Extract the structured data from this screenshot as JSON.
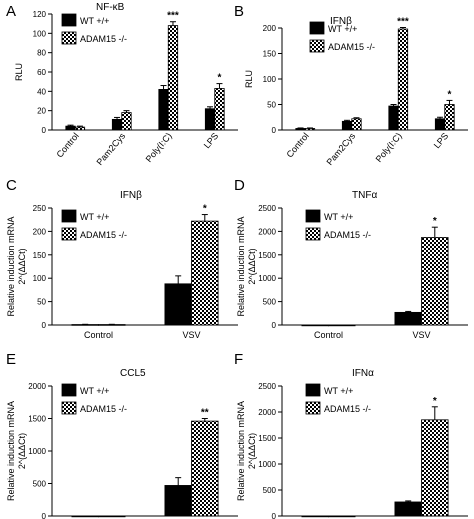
{
  "figure": {
    "legend_series": [
      "WT +/+",
      "ADAM15 -/-"
    ],
    "colors": {
      "wt": "#000000",
      "ko_pattern": "checkered"
    }
  },
  "chart_data": [
    {
      "panel": "A",
      "type": "bar",
      "title": "NF-κB",
      "ylabel": "RLU",
      "xlabel": "",
      "ylim": [
        0,
        120
      ],
      "yticks": [
        0,
        20,
        40,
        60,
        80,
        100,
        120
      ],
      "categories": [
        "Control",
        "Pam2Cys",
        "Poly(I:C)",
        "LPS"
      ],
      "category_label_rotation": -50,
      "series": [
        {
          "name": "WT +/+",
          "values": [
            4,
            11,
            42,
            22
          ],
          "errors": [
            1,
            2,
            4,
            2
          ]
        },
        {
          "name": "ADAM15 -/-",
          "values": [
            3,
            18,
            108,
            43
          ],
          "errors": [
            1,
            2,
            4,
            5
          ]
        }
      ],
      "annotations": [
        {
          "category": "Poly(I:C)",
          "series": "ADAM15 -/-",
          "text": "***"
        },
        {
          "category": "LPS",
          "series": "ADAM15 -/-",
          "text": "*"
        }
      ],
      "legend": "top-left"
    },
    {
      "panel": "B",
      "type": "bar",
      "title": "IFNβ",
      "ylabel": "RLU",
      "xlabel": "",
      "ylim": [
        0,
        200
      ],
      "yticks": [
        0,
        50,
        100,
        150,
        200
      ],
      "categories": [
        "Control",
        "Pam2Cys",
        "Poly(I:C)",
        "LPS"
      ],
      "category_label_rotation": -50,
      "series": [
        {
          "name": "WT +/+",
          "values": [
            3,
            17,
            47,
            22
          ],
          "errors": [
            1,
            2,
            3,
            3
          ]
        },
        {
          "name": "ADAM15 -/-",
          "values": [
            3,
            22,
            198,
            50
          ],
          "errors": [
            1,
            2,
            3,
            8
          ]
        }
      ],
      "annotations": [
        {
          "category": "Poly(I:C)",
          "series": "ADAM15 -/-",
          "text": "***"
        },
        {
          "category": "LPS",
          "series": "ADAM15 -/-",
          "text": "*"
        }
      ],
      "legend": "top-left"
    },
    {
      "panel": "C",
      "type": "bar",
      "title": "IFNβ",
      "ylabel": "Relative induction mRNA\n2^(ΔΔCt)",
      "xlabel": "",
      "ylim": [
        0,
        250
      ],
      "yticks": [
        0,
        50,
        100,
        150,
        200,
        250
      ],
      "categories": [
        "Control",
        "VSV"
      ],
      "category_label_rotation": 0,
      "series": [
        {
          "name": "WT +/+",
          "values": [
            1,
            88
          ],
          "errors": [
            0.5,
            17
          ]
        },
        {
          "name": "ADAM15 -/-",
          "values": [
            1,
            222
          ],
          "errors": [
            0.5,
            14
          ]
        }
      ],
      "annotations": [
        {
          "category": "VSV",
          "series": "ADAM15 -/-",
          "text": "*"
        }
      ],
      "legend": "top-left"
    },
    {
      "panel": "D",
      "type": "bar",
      "title": "TNFα",
      "ylabel": "Relative induction mRNA\n2^(ΔΔCt)",
      "xlabel": "",
      "ylim": [
        0,
        2500
      ],
      "yticks": [
        0,
        500,
        1000,
        1500,
        2000,
        2500
      ],
      "categories": [
        "Control",
        "VSV"
      ],
      "category_label_rotation": 0,
      "series": [
        {
          "name": "WT +/+",
          "values": [
            0,
            270
          ],
          "errors": [
            0,
            20
          ]
        },
        {
          "name": "ADAM15 -/-",
          "values": [
            0,
            1870
          ],
          "errors": [
            0,
            220
          ]
        }
      ],
      "annotations": [
        {
          "category": "VSV",
          "series": "ADAM15 -/-",
          "text": "*"
        }
      ],
      "legend": "top-left"
    },
    {
      "panel": "E",
      "type": "bar",
      "title": "CCL5",
      "ylabel": "Relative induction mRNA\n2^(ΔΔCt)",
      "xlabel": "",
      "ylim": [
        0,
        2000
      ],
      "yticks": [
        0,
        500,
        1000,
        1500,
        2000
      ],
      "categories": [
        "Control",
        "VSV"
      ],
      "category_label_rotation": 0,
      "series": [
        {
          "name": "WT +/+",
          "values": [
            0,
            470
          ],
          "errors": [
            0,
            120
          ]
        },
        {
          "name": "ADAM15 -/-",
          "values": [
            0,
            1460
          ],
          "errors": [
            0,
            40
          ]
        }
      ],
      "annotations": [
        {
          "category": "VSV",
          "series": "ADAM15 -/-",
          "text": "**"
        }
      ],
      "legend": "top-left"
    },
    {
      "panel": "F",
      "type": "bar",
      "title": "IFNα",
      "ylabel": "Relative induction mRNA\n2^(ΔΔCt)",
      "xlabel": "",
      "ylim": [
        0,
        2500
      ],
      "yticks": [
        0,
        500,
        1000,
        1500,
        2000,
        2500
      ],
      "categories": [
        "Control",
        "VSV"
      ],
      "category_label_rotation": 0,
      "series": [
        {
          "name": "WT +/+",
          "values": [
            0,
            270
          ],
          "errors": [
            0,
            20
          ]
        },
        {
          "name": "ADAM15 -/-",
          "values": [
            0,
            1850
          ],
          "errors": [
            0,
            250
          ]
        }
      ],
      "annotations": [
        {
          "category": "VSV",
          "series": "ADAM15 -/-",
          "text": "*"
        }
      ],
      "legend": "top-left"
    }
  ]
}
